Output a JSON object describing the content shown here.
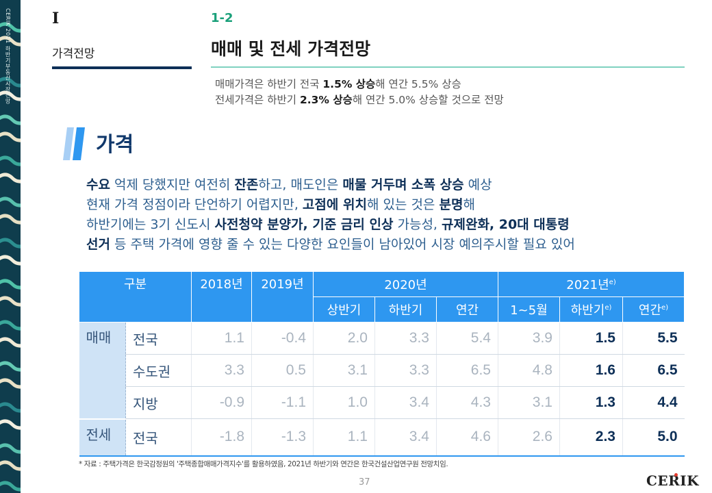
{
  "side_text": "CERIK 2021 하반기부동산시장전망",
  "header": {
    "section_number": "I",
    "section_name": "가격전망",
    "chapter_number": "1-2",
    "chapter_title": "매매 및 전세 가격전망"
  },
  "summary": {
    "line1": {
      "pre": "매매가격은 하반기 전국 ",
      "bold": "1.5% 상승",
      "post": "해 연간 5.5% 상승"
    },
    "line2": {
      "pre": "전세가격은 하반기 ",
      "bold": "2.3% 상승",
      "post": "해 연간 5.0% 상승할 것으로 전망"
    }
  },
  "price_heading": "가격",
  "body": {
    "l1": {
      "b1": "수요",
      "t1": " 억제 당했지만 여전히 ",
      "b2": "잔존",
      "t2": "하고, 매도인은 ",
      "b3": "매물 거두며 소폭 상승",
      "t3": " 예상"
    },
    "l2": {
      "t1": "현재 가격 정점이라 단언하기 어렵지만, ",
      "b1": "고점에 위치",
      "t2": "해 있는 것은 ",
      "b2": "분명",
      "t3": "해"
    },
    "l3": {
      "t1": "하반기에는 3기 신도시 ",
      "b1": "사전청약 분양가, 기준 금리 인상",
      "t2": " 가능성, ",
      "b2": "규제완화, 20대 대통령",
      "t3": ""
    },
    "l4": {
      "b1": "선거",
      "t1": " 등 주택 가격에 영향 줄 수 있는 다양한 요인들이 남아있어 시장 예의주시할 필요 있어"
    }
  },
  "table": {
    "header": {
      "category": "구분",
      "y2018": "2018년",
      "y2019": "2019년",
      "y2020": "2020년",
      "y2021": "2021년",
      "y2021_mark": "e)",
      "sub": {
        "h1": "상반기",
        "h2": "하반기",
        "annual": "연간",
        "jan_may": "1~5월",
        "h2_2021": "하반기",
        "annual_2021": "연간",
        "mark": "e)"
      }
    },
    "groups": {
      "sale": "매매",
      "jeonse": "전세"
    },
    "rows": [
      {
        "region": "전국",
        "v2018": "1.1",
        "v2019": "-0.4",
        "h1_2020": "2.0",
        "h2_2020": "3.3",
        "y_2020": "5.4",
        "jm_2021": "3.9",
        "h2_2021": "1.5",
        "y_2021": "5.5"
      },
      {
        "region": "수도권",
        "v2018": "3.3",
        "v2019": "0.5",
        "h1_2020": "3.1",
        "h2_2020": "3.3",
        "y_2020": "6.5",
        "jm_2021": "4.8",
        "h2_2021": "1.6",
        "y_2021": "6.5"
      },
      {
        "region": "지방",
        "v2018": "-0.9",
        "v2019": "-1.1",
        "h1_2020": "1.0",
        "h2_2020": "3.4",
        "y_2020": "4.3",
        "jm_2021": "3.1",
        "h2_2021": "1.3",
        "y_2021": "4.4"
      },
      {
        "region": "전국",
        "v2018": "-1.8",
        "v2019": "-1.3",
        "h1_2020": "1.1",
        "h2_2020": "3.4",
        "y_2020": "4.6",
        "jm_2021": "2.6",
        "h2_2021": "2.3",
        "y_2021": "5.0"
      }
    ]
  },
  "footnote": "* 자료 : 주택가격은 한국감정원의 '주택종합매매가격지수'를 활용하였음, 2021년 하반기와 연간은 한국건설산업연구원 전망치임.",
  "page_number": "37",
  "logo": "CERIK",
  "colors": {
    "accent_blue": "#2e97f0",
    "navy": "#0d2f57",
    "green": "#1aa07a",
    "light_blue": "#cfe3f6"
  }
}
